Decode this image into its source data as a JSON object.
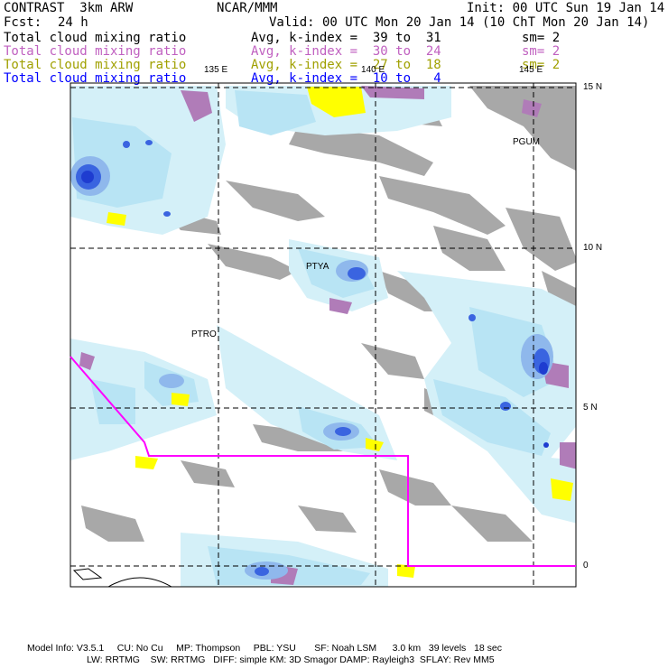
{
  "header": {
    "model": "CONTRAST  3km ARW",
    "center": "NCAR/MMM",
    "init": "Init: 00 UTC Sun 19 Jan 14",
    "fcst_label": "Fcst:",
    "fcst_value": "24 h",
    "valid": "Valid: 00 UTC Mon 20 Jan 14 (10 ChT Mon 20 Jan 14)"
  },
  "fields": [
    {
      "name": "Total cloud mixing ratio",
      "stat": "Avg, k-index =  39 to  31",
      "sm": "sm= 2",
      "color": "#000000"
    },
    {
      "name": "Total cloud mixing ratio",
      "stat": "Avg, k-index =  30 to  24",
      "sm": "sm= 2",
      "color": "#c060c0"
    },
    {
      "name": "Total cloud mixing ratio",
      "stat": "Avg, k-index =  27 to  18",
      "sm": "sm= 2",
      "color": "#a0a000"
    },
    {
      "name": "Total cloud mixing ratio",
      "stat": "Avg, k-index =  10 to   4",
      "sm": "",
      "color": "#0000ff"
    }
  ],
  "map": {
    "lon_labels": [
      "135 E",
      "140 E",
      "145 E"
    ],
    "lat_labels": [
      "15 N",
      "10 N",
      "5 N",
      "0"
    ],
    "stations": [
      "PGUM",
      "PTYA",
      "PTRO"
    ],
    "colors": {
      "light_cloud": "#d4f0f8",
      "cloud": "#b8e4f4",
      "mid_blue": "#8fb8ec",
      "dark_blue": "#3a64e0",
      "deep_blue": "#1e3cd0",
      "purple": "#b07cb8",
      "yellow": "#ffff00",
      "gray": "#a8a8a8",
      "boundary": "#ff00ff"
    }
  },
  "footer": {
    "line1": "Model Info: V3.5.1     CU: No Cu     MP: Thompson     PBL: YSU       SF: Noah LSM      3.0 km   39 levels   18 sec",
    "line2": "LW: RRTMG    SW: RRTMG   DIFF: simple KM: 3D Smagor DAMP: Rayleigh3  SFLAY: Rev MM5"
  }
}
